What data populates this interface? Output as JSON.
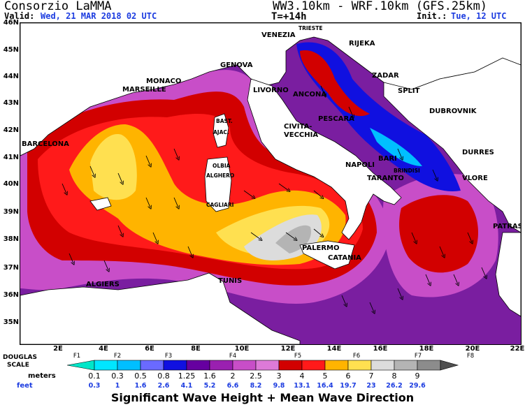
{
  "header": {
    "title_left": "Consorzio LaMMA",
    "valid_label": "Valid:",
    "valid_value": "Wed, 21 MAR 2018  02 UTC",
    "title_right": "WW3.10km - WRF.10km (GFS.25km)",
    "forecast_step": "T=+14h",
    "init_label": "Init.:",
    "init_value": "Tue, 12 UTC"
  },
  "axes": {
    "lat_labels": [
      "46N",
      "45N",
      "44N",
      "43N",
      "42N",
      "41N",
      "40N",
      "39N",
      "38N",
      "37N",
      "36N",
      "35N"
    ],
    "lon_labels": [
      "2E",
      "4E",
      "6E",
      "8E",
      "10E",
      "12E",
      "14E",
      "16E",
      "18E",
      "20E",
      "22E"
    ]
  },
  "cities": [
    {
      "name": "TRIESTE",
      "small": true
    },
    {
      "name": "VENEZIA",
      "small": false
    },
    {
      "name": "RIJEKA",
      "small": false
    },
    {
      "name": "GENOVA",
      "small": false
    },
    {
      "name": "MONACO",
      "small": false
    },
    {
      "name": "MARSEILLE",
      "small": false
    },
    {
      "name": "LIVORNO",
      "small": false
    },
    {
      "name": "ANCONA",
      "small": false
    },
    {
      "name": "ZADAR",
      "small": false
    },
    {
      "name": "SPLIT",
      "small": false
    },
    {
      "name": "BAST.",
      "small": true
    },
    {
      "name": "AJAC.",
      "small": true
    },
    {
      "name": "PESCARA",
      "small": false
    },
    {
      "name": "DUBROVNIK",
      "small": false
    },
    {
      "name": "CIVITA-",
      "small": false
    },
    {
      "name": "VECCHIA",
      "small": false
    },
    {
      "name": "BARCELONA",
      "small": false
    },
    {
      "name": "DURRES",
      "small": false
    },
    {
      "name": "OLBIA",
      "small": true
    },
    {
      "name": "ALGHERO",
      "small": true
    },
    {
      "name": "NAPOLI",
      "small": false
    },
    {
      "name": "BARI",
      "small": false
    },
    {
      "name": "BRINDISI",
      "small": true
    },
    {
      "name": "TARANTO",
      "small": false
    },
    {
      "name": "VLORE",
      "small": false
    },
    {
      "name": "CAGLIARI",
      "small": true
    },
    {
      "name": "PATRAS",
      "small": false
    },
    {
      "name": "PALERMO",
      "small": false
    },
    {
      "name": "CATANIA",
      "small": false
    },
    {
      "name": "TUNIS",
      "small": false
    },
    {
      "name": "ALGIERS",
      "small": false
    }
  ],
  "legend": {
    "douglas_label_1": "DOUGLAS",
    "douglas_label_2": "SCALE",
    "force_labels": [
      "F1",
      "F2",
      "F3",
      "F4",
      "F5",
      "F6",
      "F7",
      "F8"
    ],
    "meters_label": "meters",
    "feet_label": "feet",
    "meters": [
      "0.1",
      "0.3",
      "0.5",
      "0.8",
      "1.25",
      "1.6",
      "2",
      "2.5",
      "3",
      "4",
      "5",
      "6",
      "7",
      "8",
      "9"
    ],
    "feet": [
      "0.3",
      "1",
      "1.6",
      "2.6",
      "4.1",
      "5.2",
      "6.6",
      "8.2",
      "9.8",
      "13.1",
      "16.4",
      "19.7",
      "23",
      "26.2",
      "29.6"
    ],
    "colors": [
      "#00e6c8",
      "#00e6ff",
      "#00bfff",
      "#6a6aff",
      "#1010e0",
      "#6600a0",
      "#9a20b0",
      "#c84ec8",
      "#dd7ad8",
      "#d20000",
      "#ff1a1a",
      "#ffb400",
      "#ffe050",
      "#dcdcdc",
      "#b4b4b4",
      "#8c8c8c",
      "#505050"
    ],
    "caption": "Significant Wave Height + Mean Wave Direction"
  }
}
